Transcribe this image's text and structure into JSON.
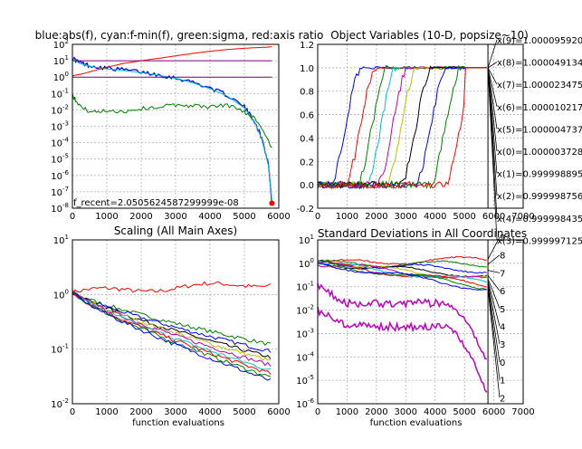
{
  "chart_data": [
    {
      "type": "line",
      "title": "blue:abs(f), cyan:f-min(f), green:sigma, red:axis ratio",
      "xlabel": "",
      "ylabel": "",
      "yscale": "log",
      "xlim": [
        0,
        6000
      ],
      "ylim_exp": [
        -8,
        2
      ],
      "grid": true,
      "x_ticks": [
        "0",
        "1000",
        "2000",
        "3000",
        "4000",
        "5000",
        "6000"
      ],
      "y_ticks": [
        "10^2",
        "10^1",
        "10^0",
        "10^-1",
        "10^-2",
        "10^-3",
        "10^-4",
        "10^-5",
        "10^-6",
        "10^-7",
        "10^-8"
      ],
      "annotation": "f_recent=2.0505624587299999e-08",
      "series": [
        {
          "key": "absf",
          "color": "#0000ff",
          "x": [
            0,
            200,
            500,
            1000,
            1500,
            2000,
            2500,
            3000,
            3500,
            4000,
            4500,
            5000,
            5300,
            5500,
            5700,
            5800
          ],
          "y": [
            15,
            8,
            5,
            3.6,
            2.8,
            2.1,
            1.4,
            0.9,
            0.5,
            0.22,
            0.08,
            0.015,
            0.002,
            0.0002,
            5e-06,
            2e-08
          ]
        },
        {
          "key": "fmin",
          "color": "#00bfbf",
          "x": [
            0,
            200,
            500,
            1000,
            1500,
            2000,
            2500,
            3000,
            3500,
            4000,
            4500,
            5000,
            5300,
            5500,
            5700,
            5800
          ],
          "y": [
            14,
            7,
            4.5,
            3.2,
            2.5,
            1.9,
            1.3,
            0.85,
            0.45,
            0.2,
            0.07,
            0.013,
            0.0018,
            0.00018,
            4e-06,
            3e-08
          ]
        },
        {
          "key": "sigma",
          "color": "#008000",
          "x": [
            0,
            100,
            300,
            600,
            1000,
            1500,
            2000,
            2500,
            3000,
            3500,
            4000,
            4500,
            5000,
            5400,
            5800
          ],
          "y": [
            0.08,
            0.04,
            0.012,
            0.007,
            0.009,
            0.008,
            0.012,
            0.015,
            0.02,
            0.018,
            0.015,
            0.02,
            0.008,
            0.002,
            5e-05
          ]
        },
        {
          "key": "ratio",
          "color": "#ff0000",
          "x": [
            0,
            300,
            600,
            1000,
            1500,
            2000,
            2500,
            3000,
            3500,
            4000,
            4500,
            5000,
            5500,
            5800
          ],
          "y": [
            1.2,
            1.6,
            2.4,
            4,
            7,
            10,
            14,
            20,
            28,
            38,
            48,
            58,
            65,
            70
          ]
        },
        {
          "key": "purple1",
          "color": "#800080",
          "x": [
            0,
            5800
          ],
          "y": [
            10,
            10
          ]
        },
        {
          "key": "purple2",
          "color": "#800080",
          "x": [
            0,
            5800
          ],
          "y": [
            1,
            1
          ]
        }
      ]
    },
    {
      "type": "line",
      "title": "Object Variables (10-D, popsize~10)",
      "xlim": [
        0,
        7000
      ],
      "ylim": [
        -0.2,
        1.2
      ],
      "grid": true,
      "x_ticks": [
        "0",
        "1000",
        "2000",
        "3000",
        "4000",
        "5000",
        "6000",
        "7000"
      ],
      "y_ticks": [
        "1.2",
        "1.0",
        "0.8",
        "0.6",
        "0.4",
        "0.2",
        "0.0",
        "-0.2"
      ],
      "annotations": [
        "x(9)=1.000095920",
        "x(8)=1.000049134",
        "x(7)=1.000023475",
        "x(6)=1.000010217",
        "x(5)=1.000004737",
        "x(0)=1.000003728",
        "x(1)=0.999998895",
        "x(2)=0.999998756",
        "x(4)=0.999998435",
        "x(3)=0.999997125"
      ],
      "series": [
        {
          "color": "#0000ff",
          "rise": 800
        },
        {
          "color": "#ff0000",
          "rise": 1300
        },
        {
          "color": "#008000",
          "rise": 1700
        },
        {
          "color": "#00bfbf",
          "rise": 2000
        },
        {
          "color": "#bf00bf",
          "rise": 2400
        },
        {
          "color": "#bfbf00",
          "rise": 2700
        },
        {
          "color": "#000000",
          "rise": 3200
        },
        {
          "color": "#0000ff",
          "rise": 3700
        },
        {
          "color": "#008000",
          "rise": 4200
        },
        {
          "color": "#ff0000",
          "rise": 4700
        }
      ]
    },
    {
      "type": "line",
      "title": "Scaling (All Main Axes)",
      "xlabel": "function evaluations",
      "yscale": "log",
      "xlim": [
        0,
        6000
      ],
      "ylim_exp": [
        -2,
        1
      ],
      "grid": true,
      "x_ticks": [
        "0",
        "1000",
        "2000",
        "3000",
        "4000",
        "5000",
        "6000"
      ],
      "y_ticks": [
        "10^1",
        "10^0",
        "10^-1",
        "10^-2"
      ],
      "series": [
        {
          "color": "#ff0000",
          "end": 1.6
        },
        {
          "color": "#008000",
          "end": 0.12
        },
        {
          "color": "#0000ff",
          "end": 0.09
        },
        {
          "color": "#000000",
          "end": 0.07
        },
        {
          "color": "#bfbf00",
          "end": 0.06
        },
        {
          "color": "#bf00bf",
          "end": 0.05
        },
        {
          "color": "#00bfbf",
          "end": 0.04
        },
        {
          "color": "#ff0000",
          "end": 0.035
        },
        {
          "color": "#008000",
          "end": 0.03
        },
        {
          "color": "#0000ff",
          "end": 0.026
        }
      ]
    },
    {
      "type": "line",
      "title": "Standard Deviations in All Coordinates",
      "xlabel": "function evaluations",
      "yscale": "log",
      "xlim": [
        0,
        7000
      ],
      "ylim_exp": [
        -6,
        1
      ],
      "grid": true,
      "x_ticks": [
        "0",
        "1000",
        "2000",
        "3000",
        "4000",
        "5000",
        "6000",
        "7000"
      ],
      "y_ticks": [
        "10^1",
        "10^0",
        "10^-1",
        "10^-2",
        "10^-3",
        "10^-4",
        "10^-5",
        "10^-6"
      ],
      "labels": [
        "9",
        "8",
        "7",
        "6",
        "5",
        "4",
        "3",
        "0",
        "1",
        "2"
      ],
      "series": [
        {
          "color": "#ff0000",
          "end": 1.5
        },
        {
          "color": "#008000",
          "end": 0.9
        },
        {
          "color": "#0000ff",
          "end": 0.5
        },
        {
          "color": "#000000",
          "end": 0.3
        },
        {
          "color": "#bfbf00",
          "end": 0.22
        },
        {
          "color": "#bf00bf",
          "end": 0.18
        },
        {
          "color": "#00bfbf",
          "end": 0.15
        },
        {
          "color": "#ff0000",
          "end": 0.12
        },
        {
          "color": "#008000",
          "end": 0.1
        },
        {
          "color": "#0000ff",
          "end": 0.08
        }
      ],
      "magenta": [
        {
          "start": 0.1,
          "end": 5e-05
        },
        {
          "start": 0.01,
          "end": 2e-06
        }
      ]
    }
  ]
}
